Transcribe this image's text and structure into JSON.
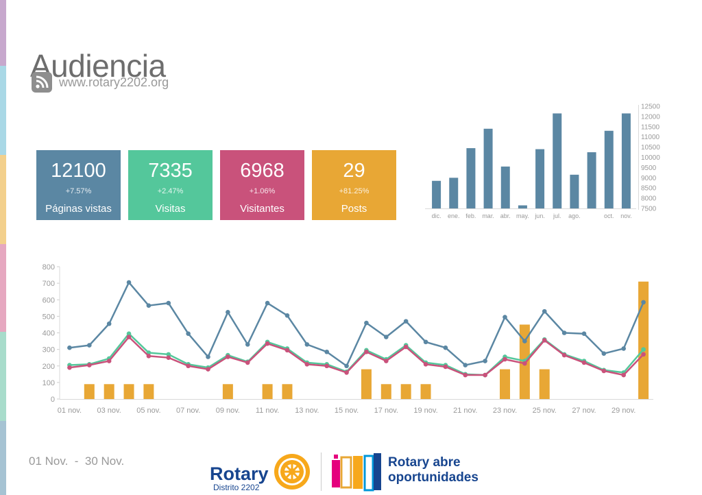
{
  "page": {
    "title": "Audiencia",
    "site": "www.rotary2202.org",
    "date_range": "01 Nov.  -  30 Nov."
  },
  "icons": {
    "feed": "rss-icon"
  },
  "colors": {
    "pageviews": "#5b87a3",
    "visits": "#54c79b",
    "visitors": "#c9527b",
    "posts": "#e8a735",
    "side_strip": [
      "#c7a8cd",
      "#a9d8e6",
      "#f3d08c",
      "#e6a8c0",
      "#a8dccb",
      "#a6c3d3"
    ]
  },
  "kpis": [
    {
      "value": "12100",
      "change": "+7.57%",
      "label": "Páginas vistas",
      "color": "#5b87a3"
    },
    {
      "value": "7335",
      "change": "+2.47%",
      "label": "Visitas",
      "color": "#54c79b"
    },
    {
      "value": "6968",
      "change": "+1.06%",
      "label": "Visitantes",
      "color": "#c9527b"
    },
    {
      "value": "29",
      "change": "+81.25%",
      "label": "Posts",
      "color": "#e8a735"
    }
  ],
  "chart_data": [
    {
      "type": "bar",
      "categories": [
        "dic.",
        "ene.",
        "feb.",
        "mar.",
        "abr.",
        "may.",
        "jun.",
        "jul.",
        "ago.",
        "",
        "oct.",
        "nov."
      ],
      "values": [
        8850,
        9000,
        10450,
        11400,
        9550,
        7650,
        10400,
        12150,
        9150,
        10250,
        11300,
        12150
      ],
      "ylim": [
        7500,
        12500
      ],
      "yticks": [
        7500,
        8000,
        8500,
        9000,
        9500,
        10000,
        10500,
        11000,
        11500,
        12000,
        12500
      ],
      "y_axis_side": "right",
      "color": "#5b87a3"
    },
    {
      "type": "line",
      "x": [
        "01 nov.",
        "02 nov.",
        "03 nov.",
        "04 nov.",
        "05 nov.",
        "06 nov.",
        "07 nov.",
        "08 nov.",
        "09 nov.",
        "10 nov.",
        "11 nov.",
        "12 nov.",
        "13 nov.",
        "14 nov.",
        "15 nov.",
        "16 nov.",
        "17 nov.",
        "18 nov.",
        "19 nov.",
        "20 nov.",
        "21 nov.",
        "22 nov.",
        "23 nov.",
        "24 nov.",
        "25 nov.",
        "26 nov.",
        "27 nov.",
        "28 nov.",
        "29 nov.",
        "30 nov."
      ],
      "xtick_labels": [
        "01 nov.",
        "",
        "03 nov.",
        "",
        "05 nov.",
        "",
        "07 nov.",
        "",
        "09 nov.",
        "",
        "11 nov.",
        "",
        "13 nov.",
        "",
        "15 nov.",
        "",
        "17 nov.",
        "",
        "19 nov.",
        "",
        "21 nov.",
        "",
        "23 nov.",
        "",
        "25 nov.",
        "",
        "27 nov.",
        "",
        "29 nov.",
        ""
      ],
      "ylim": [
        0,
        800
      ],
      "yticks": [
        0,
        100,
        200,
        300,
        400,
        500,
        600,
        700,
        800
      ],
      "series": [
        {
          "key": "pageviews",
          "color": "#5b87a3",
          "values": [
            310,
            325,
            455,
            705,
            565,
            580,
            395,
            255,
            525,
            330,
            580,
            505,
            330,
            285,
            200,
            460,
            375,
            470,
            345,
            310,
            205,
            230,
            495,
            350,
            530,
            400,
            395,
            275,
            305,
            585
          ]
        },
        {
          "key": "visits",
          "color": "#54c79b",
          "values": [
            205,
            210,
            245,
            395,
            280,
            270,
            210,
            190,
            265,
            225,
            345,
            305,
            220,
            210,
            165,
            295,
            240,
            325,
            220,
            205,
            150,
            145,
            255,
            230,
            360,
            270,
            230,
            175,
            160,
            300
          ]
        },
        {
          "key": "visitors",
          "color": "#c9527b",
          "values": [
            190,
            205,
            230,
            375,
            260,
            250,
            200,
            180,
            255,
            220,
            335,
            295,
            210,
            200,
            160,
            285,
            230,
            315,
            210,
            195,
            145,
            145,
            240,
            215,
            355,
            265,
            220,
            170,
            145,
            270
          ]
        },
        {
          "key": "posts",
          "type": "bar",
          "color": "#e8a735",
          "values": [
            0,
            90,
            90,
            90,
            90,
            0,
            0,
            0,
            90,
            0,
            90,
            90,
            0,
            0,
            0,
            180,
            90,
            90,
            90,
            0,
            0,
            0,
            180,
            450,
            180,
            0,
            0,
            0,
            0,
            710
          ]
        }
      ]
    }
  ],
  "logo": {
    "rotary": "Rotary",
    "district": "Distrito 2202",
    "slogan_line1": "Rotary abre",
    "slogan_line2": "oportunidades"
  }
}
